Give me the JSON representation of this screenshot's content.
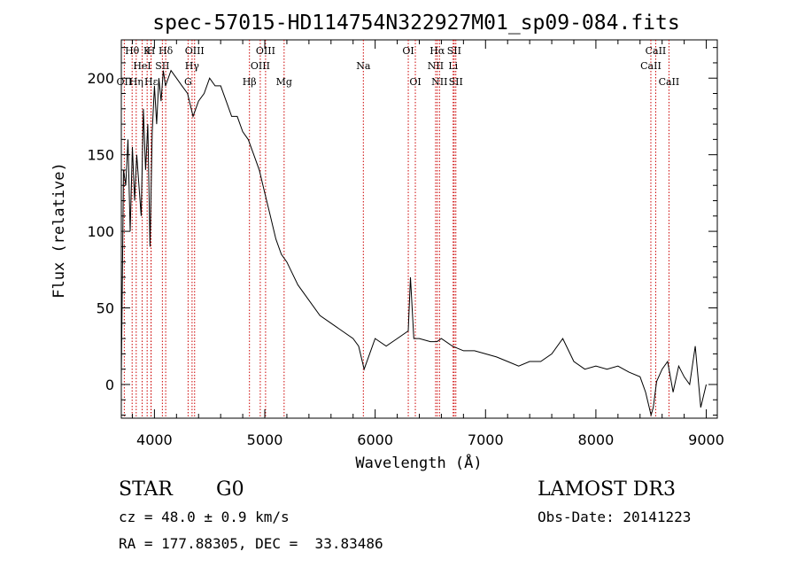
{
  "chart_data": {
    "type": "line",
    "title": "spec-57015-HD114754N322927M01_sp09-084.fits",
    "xlabel": "Wavelength (Å)",
    "ylabel": "Flux (relative)",
    "xlim": [
      3700,
      9100
    ],
    "ylim": [
      -22,
      225
    ],
    "x_ticks": [
      4000,
      5000,
      6000,
      7000,
      8000,
      9000
    ],
    "y_ticks": [
      0,
      50,
      100,
      150,
      200
    ],
    "series": [
      {
        "name": "spectrum",
        "x": [
          3700,
          3720,
          3740,
          3760,
          3780,
          3800,
          3820,
          3840,
          3860,
          3880,
          3900,
          3920,
          3940,
          3960,
          3980,
          4000,
          4020,
          4040,
          4060,
          4080,
          4100,
          4150,
          4200,
          4250,
          4300,
          4350,
          4400,
          4450,
          4500,
          4550,
          4600,
          4650,
          4700,
          4750,
          4800,
          4850,
          4900,
          4950,
          5000,
          5050,
          5100,
          5150,
          5200,
          5300,
          5400,
          5500,
          5600,
          5700,
          5800,
          5850,
          5900,
          5950,
          6000,
          6100,
          6200,
          6300,
          6320,
          6350,
          6400,
          6500,
          6560,
          6600,
          6700,
          6800,
          6900,
          7000,
          7100,
          7200,
          7300,
          7400,
          7500,
          7600,
          7700,
          7800,
          7900,
          8000,
          8100,
          8200,
          8300,
          8400,
          8450,
          8500,
          8520,
          8550,
          8600,
          8650,
          8700,
          8750,
          8800,
          8850,
          8900,
          8950,
          9000
        ],
        "values": [
          5,
          140,
          130,
          160,
          100,
          155,
          120,
          150,
          130,
          110,
          180,
          140,
          170,
          90,
          165,
          195,
          170,
          200,
          185,
          205,
          195,
          205,
          200,
          195,
          190,
          175,
          185,
          190,
          200,
          195,
          195,
          185,
          175,
          175,
          165,
          160,
          150,
          140,
          125,
          110,
          95,
          85,
          80,
          65,
          55,
          45,
          40,
          35,
          30,
          25,
          10,
          20,
          30,
          25,
          30,
          35,
          70,
          30,
          30,
          28,
          28,
          30,
          25,
          22,
          22,
          20,
          18,
          15,
          12,
          15,
          15,
          20,
          30,
          15,
          10,
          12,
          10,
          12,
          8,
          5,
          -5,
          -20,
          -15,
          2,
          10,
          15,
          -5,
          12,
          5,
          0,
          25,
          -15,
          0
        ]
      }
    ],
    "line_markers": [
      {
        "wavelength": 3727,
        "label": "OII",
        "row": 3
      },
      {
        "wavelength": 3798,
        "label": "Hθ",
        "row": 1
      },
      {
        "wavelength": 3835,
        "label": "Hη",
        "row": 3
      },
      {
        "wavelength": 3889,
        "label": "HeI",
        "row": 2
      },
      {
        "wavelength": 3934,
        "label": "K",
        "row": 1
      },
      {
        "wavelength": 3969,
        "label": "H",
        "row": 1
      },
      {
        "wavelength": 3970,
        "label": "Hε",
        "row": 3
      },
      {
        "wavelength": 4072,
        "label": "SII",
        "row": 2
      },
      {
        "wavelength": 4102,
        "label": "Hδ",
        "row": 1
      },
      {
        "wavelength": 4305,
        "label": "G",
        "row": 3
      },
      {
        "wavelength": 4341,
        "label": "Hγ",
        "row": 2
      },
      {
        "wavelength": 4364,
        "label": "OIII",
        "row": 1
      },
      {
        "wavelength": 4861,
        "label": "Hβ",
        "row": 3
      },
      {
        "wavelength": 4959,
        "label": "OIII",
        "row": 2
      },
      {
        "wavelength": 5007,
        "label": "OIII",
        "row": 1
      },
      {
        "wavelength": 5175,
        "label": "Mg",
        "row": 3
      },
      {
        "wavelength": 5893,
        "label": "Na",
        "row": 2
      },
      {
        "wavelength": 6300,
        "label": "OI",
        "row": 1
      },
      {
        "wavelength": 6364,
        "label": "OI",
        "row": 3
      },
      {
        "wavelength": 6548,
        "label": "NII",
        "row": 2
      },
      {
        "wavelength": 6563,
        "label": "Hα",
        "row": 1
      },
      {
        "wavelength": 6583,
        "label": "NII",
        "row": 3
      },
      {
        "wavelength": 6707,
        "label": "Li",
        "row": 2
      },
      {
        "wavelength": 6716,
        "label": "SII",
        "row": 1
      },
      {
        "wavelength": 6731,
        "label": "SII",
        "row": 3
      },
      {
        "wavelength": 8498,
        "label": "CaII",
        "row": 2
      },
      {
        "wavelength": 8542,
        "label": "CaII",
        "row": 1
      },
      {
        "wavelength": 8662,
        "label": "CaII",
        "row": 3
      }
    ],
    "colors": {
      "spectrum": "#000000",
      "markers": "#cc0000",
      "frame": "#000000"
    }
  },
  "info": {
    "object_class": "STAR",
    "subclass": "G0",
    "survey": "LAMOST DR3",
    "cz": "cz = 48.0 ± 0.9 km/s",
    "obs_date": "Obs-Date: 20141223",
    "coords": "RA = 177.88305, DEC =  33.83486"
  }
}
